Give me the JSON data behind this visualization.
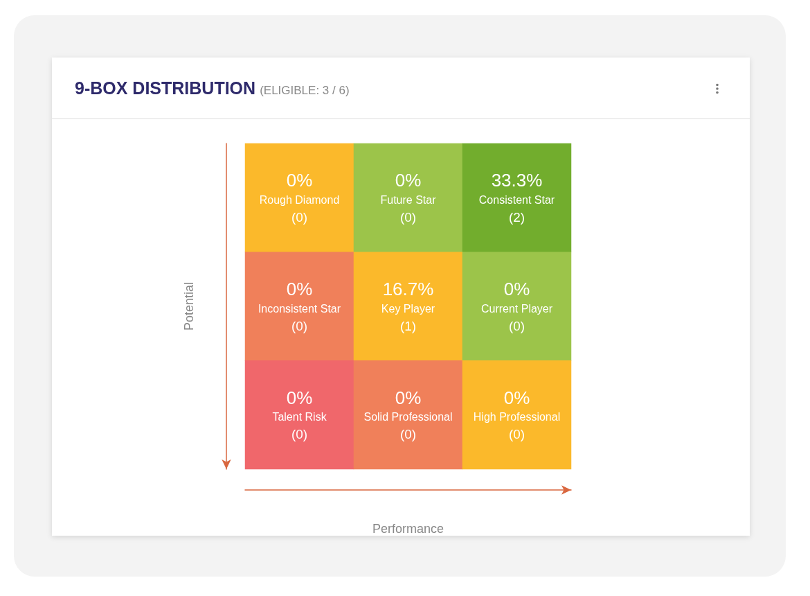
{
  "chart_data": {
    "type": "heatmap",
    "title": "9-BOX DISTRIBUTION",
    "subtitle": "(ELIGIBLE: 3 / 6)",
    "xlabel": "Performance",
    "ylabel": "Potential",
    "categories": [
      null,
      null,
      null
    ],
    "y_categories": [
      null,
      null,
      null
    ],
    "data_labels": true,
    "cells": [
      [
        0,
        0,
        33.3
      ],
      [
        0,
        16.7,
        0
      ],
      [
        0,
        0,
        0
      ]
    ],
    "cell_labels": [
      [
        "0%",
        "0%",
        "33.3%"
      ],
      [
        "0%",
        "16.7%",
        "0%"
      ],
      [
        "0%",
        "0%",
        "0%"
      ]
    ],
    "annotations": [
      "Rough Diamond\n(0)",
      "Future Star\n(0)",
      "Consistent Star\n(2)",
      "Inconsistent Star\n(0)",
      "Key Player\n(1)",
      "Current Player\n(0)",
      "Talent Risk\n(0)",
      "Solid Professional\n(0)",
      "High Professional\n(0)"
    ],
    "colors": [
      [
        "#fbb92b",
        "#9cc44a",
        "#72ad2d"
      ],
      [
        "#f0805a",
        "#fbb92b",
        "#9cc44a"
      ],
      [
        "#f0676b",
        "#f0805a",
        "#fbb92b"
      ]
    ]
  }
}
